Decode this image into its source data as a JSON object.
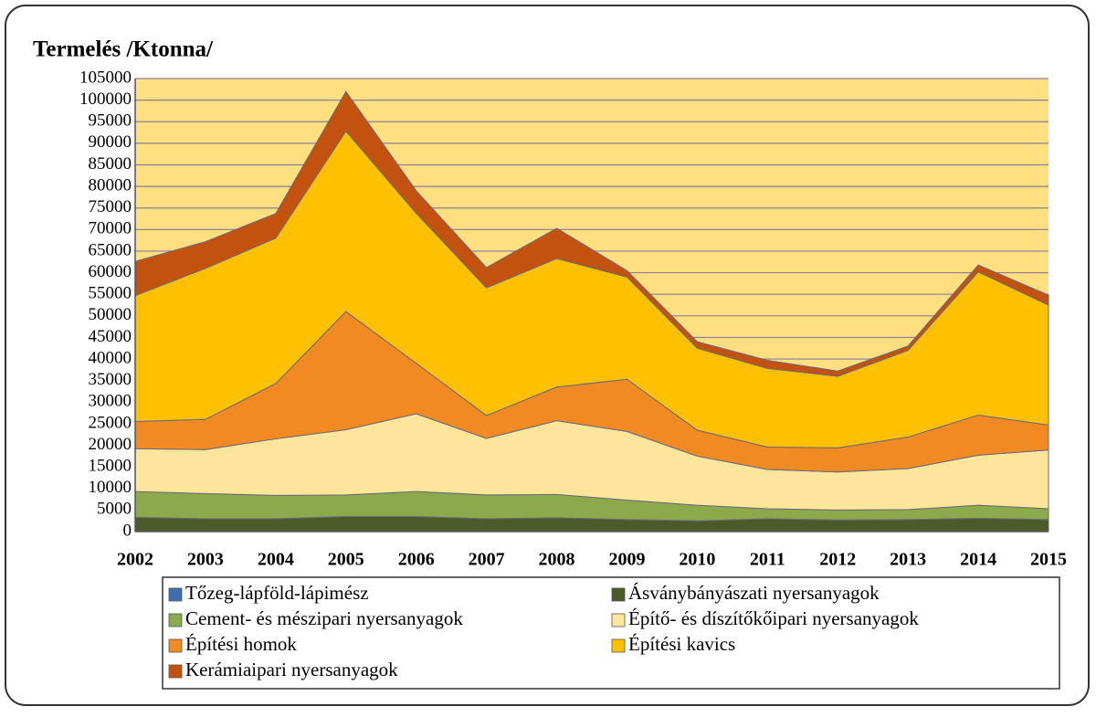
{
  "chart_data": {
    "type": "stacked_area",
    "title": "Termelés /Ktonna/",
    "categories": [
      "2002",
      "2003",
      "2004",
      "2005",
      "2006",
      "2007",
      "2008",
      "2009",
      "2010",
      "2011",
      "2012",
      "2013",
      "2014",
      "2015"
    ],
    "series": [
      {
        "name": "Tőzeg-lápföld-lápimész",
        "color": "#3c6fb0",
        "values": [
          100,
          100,
          100,
          100,
          100,
          100,
          100,
          100,
          100,
          100,
          100,
          100,
          100,
          100
        ]
      },
      {
        "name": "Ásványbányászati nyersanyagok",
        "color": "#4b5a28",
        "values": [
          3200,
          2900,
          2900,
          3400,
          3400,
          2900,
          3100,
          2700,
          2400,
          2900,
          2600,
          2700,
          3000,
          2700
        ]
      },
      {
        "name": "Cement- és mészipari nyersanyagok",
        "color": "#8caa4c",
        "values": [
          6000,
          5800,
          5400,
          5000,
          5800,
          5500,
          5400,
          4500,
          3600,
          2300,
          2300,
          2300,
          3000,
          2500
        ]
      },
      {
        "name": "Építő- és díszítőkőipari nyersanyagok",
        "color": "#fde59c",
        "values": [
          9900,
          10200,
          13100,
          15100,
          18000,
          13100,
          17100,
          15900,
          11400,
          9100,
          8800,
          9500,
          11600,
          13600
        ]
      },
      {
        "name": "Építési homok",
        "color": "#f18a22",
        "values": [
          6300,
          7000,
          12800,
          27400,
          11700,
          5300,
          7800,
          12100,
          6000,
          5200,
          5600,
          7300,
          9300,
          5800
        ]
      },
      {
        "name": "Építési kavics",
        "color": "#ffc000",
        "values": [
          29200,
          35000,
          33700,
          41800,
          34800,
          29600,
          29800,
          23700,
          19000,
          18200,
          16600,
          20100,
          33200,
          27800
        ]
      },
      {
        "name": "Kerámiaipari nyersanyagok",
        "color": "#c4520f",
        "values": [
          7900,
          6200,
          5700,
          9200,
          5200,
          4700,
          7000,
          1500,
          1500,
          1900,
          1200,
          1000,
          1600,
          2300
        ]
      }
    ],
    "ylim": [
      0,
      105000
    ],
    "yticks": [
      0,
      5000,
      10000,
      15000,
      20000,
      25000,
      30000,
      35000,
      40000,
      45000,
      50000,
      55000,
      60000,
      65000,
      70000,
      75000,
      80000,
      85000,
      90000,
      95000,
      100000,
      105000
    ],
    "grid": true,
    "legend": "bottom"
  }
}
